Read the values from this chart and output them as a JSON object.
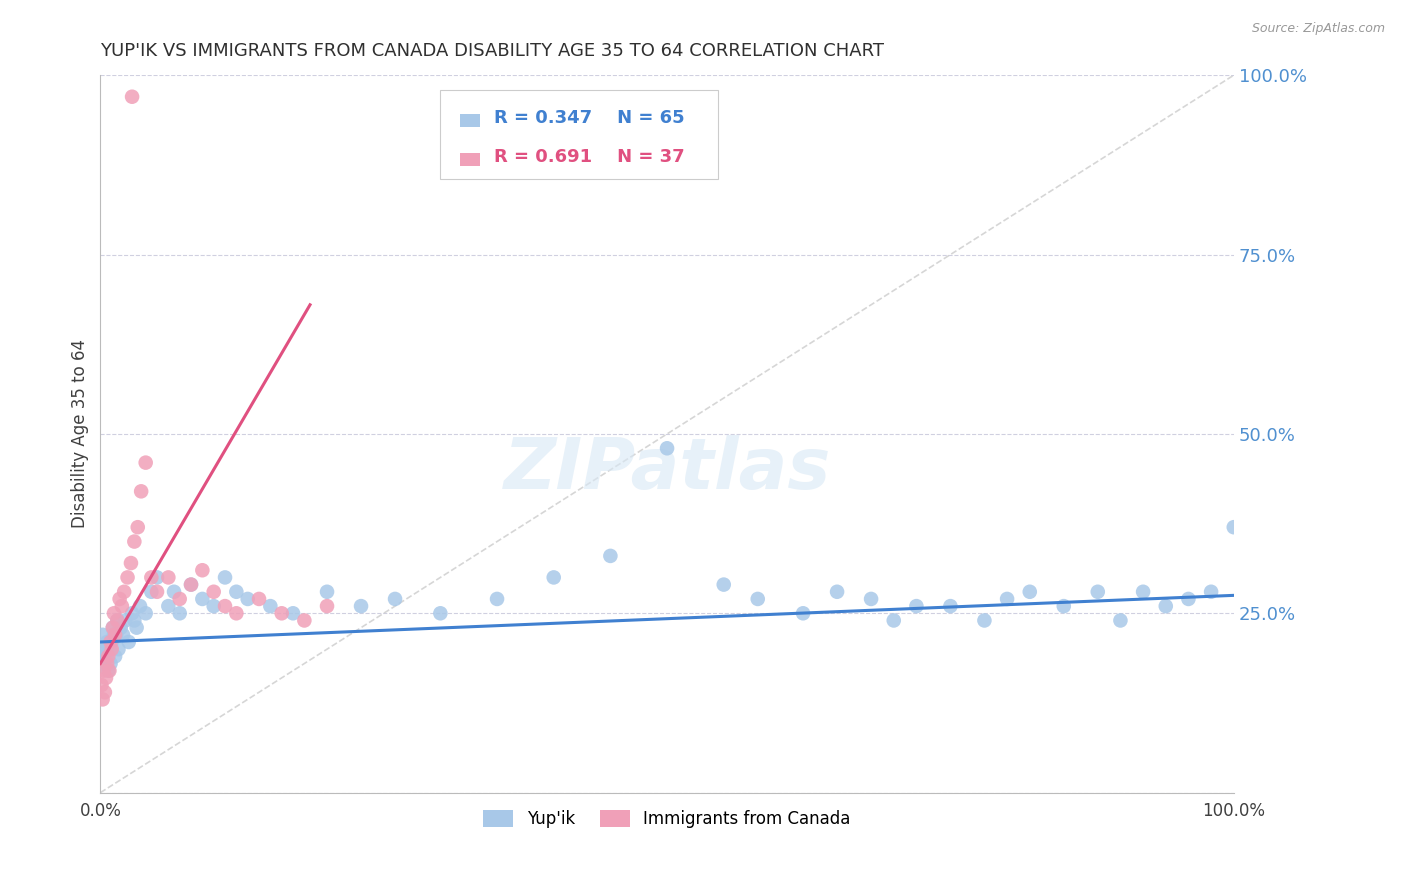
{
  "title": "YUP'IK VS IMMIGRANTS FROM CANADA DISABILITY AGE 35 TO 64 CORRELATION CHART",
  "source": "Source: ZipAtlas.com",
  "ylabel": "Disability Age 35 to 64",
  "legend_blue_r": "R = 0.347",
  "legend_blue_n": "N = 65",
  "legend_pink_r": "R = 0.691",
  "legend_pink_n": "N = 37",
  "legend_label_blue": "Yup'ik",
  "legend_label_pink": "Immigrants from Canada",
  "blue_color": "#a8c8e8",
  "pink_color": "#f0a0b8",
  "blue_line_color": "#4080d0",
  "pink_line_color": "#e05080",
  "ref_line_color": "#cccccc",
  "title_color": "#303030",
  "axis_label_color": "#404040",
  "right_tick_color": "#5090d0",
  "grid_color": "#d0d0e0",
  "background_color": "#ffffff",
  "yupik_x": [
    0.001,
    0.002,
    0.003,
    0.004,
    0.005,
    0.006,
    0.007,
    0.008,
    0.009,
    0.01,
    0.011,
    0.012,
    0.013,
    0.014,
    0.015,
    0.016,
    0.018,
    0.02,
    0.022,
    0.025,
    0.028,
    0.03,
    0.032,
    0.035,
    0.04,
    0.045,
    0.05,
    0.06,
    0.065,
    0.07,
    0.08,
    0.09,
    0.1,
    0.11,
    0.12,
    0.13,
    0.15,
    0.17,
    0.2,
    0.23,
    0.26,
    0.3,
    0.35,
    0.4,
    0.45,
    0.5,
    0.55,
    0.58,
    0.62,
    0.65,
    0.68,
    0.7,
    0.72,
    0.75,
    0.78,
    0.8,
    0.82,
    0.85,
    0.88,
    0.9,
    0.92,
    0.94,
    0.96,
    0.98,
    1.0
  ],
  "yupik_y": [
    0.2,
    0.22,
    0.18,
    0.2,
    0.19,
    0.21,
    0.17,
    0.2,
    0.18,
    0.21,
    0.23,
    0.22,
    0.19,
    0.22,
    0.24,
    0.2,
    0.23,
    0.22,
    0.24,
    0.21,
    0.25,
    0.24,
    0.23,
    0.26,
    0.25,
    0.28,
    0.3,
    0.26,
    0.28,
    0.25,
    0.29,
    0.27,
    0.26,
    0.3,
    0.28,
    0.27,
    0.26,
    0.25,
    0.28,
    0.26,
    0.27,
    0.25,
    0.27,
    0.3,
    0.33,
    0.48,
    0.29,
    0.27,
    0.25,
    0.28,
    0.27,
    0.24,
    0.26,
    0.26,
    0.24,
    0.27,
    0.28,
    0.26,
    0.28,
    0.24,
    0.28,
    0.26,
    0.27,
    0.28,
    0.37
  ],
  "canada_x": [
    0.001,
    0.002,
    0.003,
    0.004,
    0.005,
    0.006,
    0.007,
    0.008,
    0.009,
    0.01,
    0.011,
    0.012,
    0.013,
    0.015,
    0.017,
    0.019,
    0.021,
    0.024,
    0.027,
    0.03,
    0.033,
    0.036,
    0.04,
    0.045,
    0.05,
    0.06,
    0.07,
    0.08,
    0.09,
    0.1,
    0.11,
    0.12,
    0.14,
    0.16,
    0.18,
    0.2,
    0.028
  ],
  "canada_y": [
    0.15,
    0.13,
    0.17,
    0.14,
    0.16,
    0.18,
    0.19,
    0.17,
    0.21,
    0.2,
    0.23,
    0.25,
    0.22,
    0.24,
    0.27,
    0.26,
    0.28,
    0.3,
    0.32,
    0.35,
    0.37,
    0.42,
    0.46,
    0.3,
    0.28,
    0.3,
    0.27,
    0.29,
    0.31,
    0.28,
    0.26,
    0.25,
    0.27,
    0.25,
    0.24,
    0.26,
    0.97
  ],
  "blue_trend_x": [
    0.0,
    1.0
  ],
  "blue_trend_y": [
    0.21,
    0.275
  ],
  "pink_trend_x": [
    0.0,
    0.185
  ],
  "pink_trend_y": [
    0.18,
    0.68
  ],
  "xlim": [
    0.0,
    1.0
  ],
  "ylim": [
    0.0,
    1.0
  ]
}
